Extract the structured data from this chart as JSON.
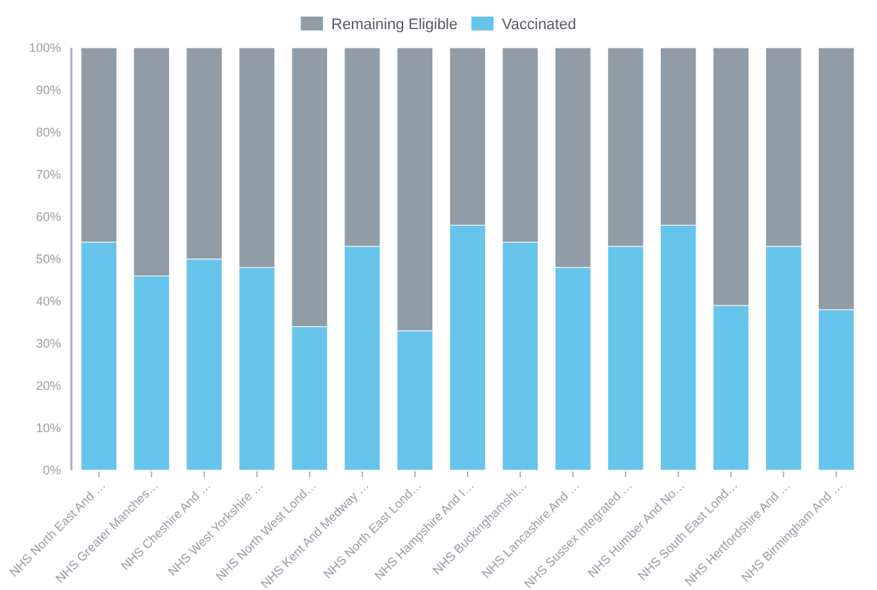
{
  "chart_data": {
    "type": "bar",
    "stacked": true,
    "legend": "top",
    "categories": [
      "NHS North East And …",
      "NHS Greater Manches…",
      "NHS Cheshire And …",
      "NHS West Yorkshire …",
      "NHS North West Lond…",
      "NHS Kent And Medway …",
      "NHS North East Lond…",
      "NHS Hampshire And I…",
      "NHS Buckinghamshi…",
      "NHS Lancashire And …",
      "NHS Sussex Integrated …",
      "NHS Humber And No…",
      "NHS South East Lond…",
      "NHS Hertfordshire And …",
      "NHS Birmingham And …"
    ],
    "series": [
      {
        "name": "Vaccinated",
        "color": "#67c4ea",
        "values": [
          54,
          46,
          50,
          48,
          34,
          53,
          33,
          58,
          54,
          48,
          53,
          58,
          39,
          53,
          38
        ]
      },
      {
        "name": "Remaining Eligible",
        "color": "#909ca6",
        "values": [
          46,
          54,
          50,
          52,
          66,
          47,
          67,
          42,
          46,
          52,
          47,
          42,
          61,
          47,
          62
        ]
      }
    ],
    "ylim": [
      0,
      100
    ],
    "yticks": [
      {
        "value": 0,
        "label": "0%"
      },
      {
        "value": 10,
        "label": "10%"
      },
      {
        "value": 20,
        "label": "20%"
      },
      {
        "value": 30,
        "label": "30%"
      },
      {
        "value": 40,
        "label": "40%"
      },
      {
        "value": 50,
        "label": "50%"
      },
      {
        "value": 60,
        "label": "60%"
      },
      {
        "value": 70,
        "label": "70%"
      },
      {
        "value": 80,
        "label": "80%"
      },
      {
        "value": 90,
        "label": "90%"
      },
      {
        "value": 100,
        "label": "100%"
      }
    ]
  }
}
